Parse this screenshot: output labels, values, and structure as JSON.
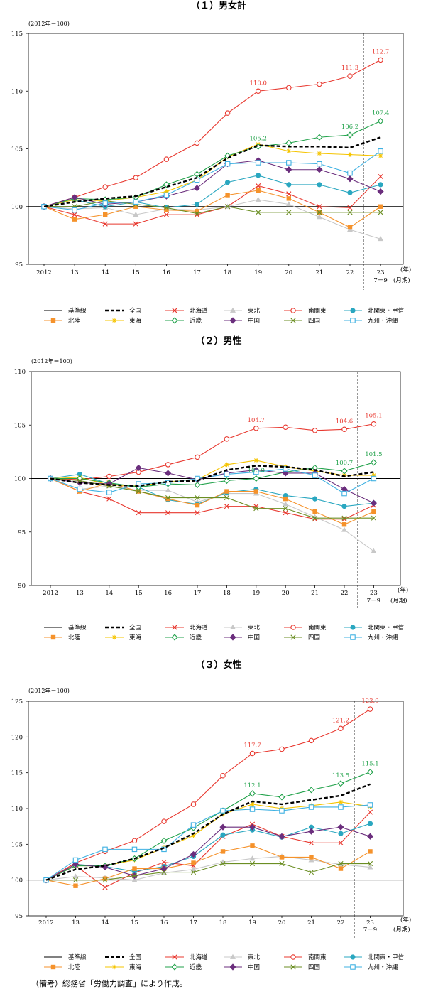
{
  "caption": "（備考）総務省「労働力調査」により作成。",
  "colors": {
    "baseline": "#000000",
    "national": "#000000",
    "hokkaido": "#e8382f",
    "tohoku": "#c8c8c8",
    "minami_kanto": "#e8382f",
    "kita_kanto_koshin": "#2aa7c0",
    "hokuriku": "#f5922b",
    "tokai": "#f5c400",
    "kinki": "#22a24b",
    "chugoku": "#6b2e7d",
    "shikoku": "#6b8e23",
    "kyushu_okinawa": "#3fb1e2"
  },
  "chart_data": [
    {
      "type": "line",
      "title": "（１）男女計",
      "unit_note": "(2012年＝100)",
      "xlabel": "(年)",
      "xlabel_sub": "(月期)",
      "categories": [
        "2012",
        "13",
        "14",
        "15",
        "16",
        "17",
        "18",
        "19",
        "20",
        "21",
        "22",
        "23"
      ],
      "last_category_sub": "7－9",
      "ylim": [
        95,
        115
      ],
      "yticks": [
        95,
        100,
        105,
        110,
        115
      ],
      "baseline": 100,
      "series": [
        {
          "key": "national",
          "name": "全国",
          "marker": "none",
          "dash": true,
          "values": [
            100,
            100.4,
            100.7,
            100.9,
            101.7,
            102.5,
            104.2,
            105.3,
            105.2,
            105.2,
            105.1,
            106.0
          ]
        },
        {
          "key": "hokkaido",
          "name": "北海道",
          "marker": "x",
          "values": [
            100,
            99.3,
            98.5,
            98.5,
            99.3,
            99.3,
            100.0,
            101.8,
            101.1,
            100.0,
            99.9,
            102.6
          ]
        },
        {
          "key": "tohoku",
          "name": "東北",
          "marker": "triangle",
          "values": [
            100,
            99.8,
            99.9,
            99.3,
            99.8,
            99.7,
            100.0,
            100.6,
            100.2,
            99.1,
            98.0,
            97.2
          ]
        },
        {
          "key": "minami_kanto",
          "name": "南関東",
          "marker": "circle-open",
          "values": [
            100,
            100.8,
            101.7,
            102.5,
            104.1,
            105.5,
            108.1,
            110.0,
            110.3,
            110.6,
            111.3,
            112.7
          ]
        },
        {
          "key": "kita_kanto_koshin",
          "name": "北関東・甲信",
          "marker": "circle-filled",
          "values": [
            100,
            100.6,
            100.0,
            100.4,
            99.9,
            100.2,
            102.1,
            102.7,
            101.9,
            101.9,
            101.2,
            101.9
          ]
        },
        {
          "key": "hokuriku",
          "name": "北陸",
          "marker": "square-filled",
          "values": [
            100,
            98.9,
            99.3,
            100.0,
            99.7,
            99.6,
            101.0,
            101.4,
            100.7,
            99.5,
            98.2,
            100.0
          ]
        },
        {
          "key": "tokai",
          "name": "東海",
          "marker": "star",
          "values": [
            100,
            100.6,
            100.5,
            100.8,
            101.3,
            102.3,
            104.3,
            105.4,
            104.8,
            104.6,
            104.5,
            104.4
          ]
        },
        {
          "key": "kinki",
          "name": "近畿",
          "marker": "diamond-open",
          "values": [
            100,
            100.7,
            100.6,
            100.8,
            101.9,
            102.8,
            104.4,
            105.2,
            105.5,
            106.0,
            106.2,
            107.4
          ]
        },
        {
          "key": "chugoku",
          "name": "中国",
          "marker": "diamond-filled",
          "values": [
            100,
            100.8,
            100.2,
            100.4,
            100.9,
            101.6,
            103.7,
            104.0,
            103.2,
            103.2,
            102.4,
            101.3
          ]
        },
        {
          "key": "shikoku",
          "name": "四国",
          "marker": "x",
          "values": [
            100,
            100.0,
            100.5,
            100.2,
            99.9,
            99.4,
            100.0,
            99.5,
            99.5,
            99.5,
            99.5,
            99.5
          ]
        },
        {
          "key": "kyushu_okinawa",
          "name": "九州・沖縄",
          "marker": "square-open",
          "values": [
            100,
            99.7,
            100.3,
            100.4,
            101.0,
            102.3,
            103.7,
            103.8,
            103.8,
            103.7,
            102.9,
            104.8
          ]
        }
      ],
      "annotations": [
        {
          "series": "minami_kanto",
          "index": 7,
          "text": "110.0"
        },
        {
          "series": "minami_kanto",
          "index": 10,
          "text": "111.3"
        },
        {
          "series": "minami_kanto",
          "index": 11,
          "text": "112.7"
        },
        {
          "series": "kinki",
          "index": 7,
          "text": "105.2"
        },
        {
          "series": "kinki",
          "index": 10,
          "text": "106.2"
        },
        {
          "series": "kinki",
          "index": 11,
          "text": "107.4"
        }
      ]
    },
    {
      "type": "line",
      "title": "（２）男性",
      "unit_note": "(2012年＝100)",
      "xlabel": "(年)",
      "xlabel_sub": "(月期)",
      "categories": [
        "2012",
        "13",
        "14",
        "15",
        "16",
        "17",
        "18",
        "19",
        "20",
        "21",
        "22",
        "23"
      ],
      "last_category_sub": "7－9",
      "ylim": [
        90,
        110
      ],
      "yticks": [
        90,
        95,
        100,
        105,
        110
      ],
      "baseline": 100,
      "series": [
        {
          "key": "national",
          "name": "全国",
          "marker": "none",
          "dash": true,
          "values": [
            100,
            99.6,
            99.4,
            99.3,
            99.7,
            99.8,
            100.8,
            101.2,
            101.1,
            100.8,
            100.2,
            100.6
          ]
        },
        {
          "key": "hokkaido",
          "name": "北海道",
          "marker": "x",
          "values": [
            100,
            98.8,
            98.1,
            96.8,
            96.8,
            96.8,
            97.4,
            97.4,
            96.8,
            96.2,
            96.2,
            97.5
          ]
        },
        {
          "key": "tohoku",
          "name": "東北",
          "marker": "triangle",
          "values": [
            100,
            99.0,
            99.3,
            98.9,
            98.9,
            97.8,
            98.6,
            98.6,
            97.6,
            96.4,
            95.2,
            93.2
          ]
        },
        {
          "key": "minami_kanto",
          "name": "南関東",
          "marker": "circle-open",
          "values": [
            100,
            99.9,
            100.2,
            100.6,
            101.3,
            102.0,
            103.7,
            104.7,
            104.8,
            104.5,
            104.6,
            105.1
          ]
        },
        {
          "key": "kita_kanto_koshin",
          "name": "北関東・甲信",
          "marker": "circle-filled",
          "values": [
            100,
            100.4,
            99.5,
            99.2,
            98.0,
            97.6,
            98.7,
            99.0,
            98.4,
            98.1,
            97.4,
            97.7
          ]
        },
        {
          "key": "hokuriku",
          "name": "北陸",
          "marker": "square-filled",
          "values": [
            100,
            98.8,
            99.6,
            98.8,
            98.1,
            97.5,
            98.8,
            98.8,
            98.1,
            96.9,
            95.7,
            96.9
          ]
        },
        {
          "key": "tokai",
          "name": "東海",
          "marker": "star",
          "values": [
            100,
            100.1,
            99.4,
            99.3,
            99.7,
            99.9,
            101.3,
            101.7,
            101.1,
            100.7,
            100.3,
            100.3
          ]
        },
        {
          "key": "kinki",
          "name": "近畿",
          "marker": "diamond-open",
          "values": [
            100,
            100.0,
            99.6,
            99.2,
            99.5,
            99.4,
            99.8,
            100.0,
            100.6,
            101.0,
            100.7,
            101.5
          ]
        },
        {
          "key": "chugoku",
          "name": "中国",
          "marker": "diamond-filled",
          "values": [
            100,
            99.6,
            99.5,
            101.0,
            100.5,
            99.9,
            100.5,
            100.8,
            100.5,
            100.5,
            99.0,
            97.7
          ]
        },
        {
          "key": "shikoku",
          "name": "四国",
          "marker": "x",
          "values": [
            100,
            99.8,
            99.3,
            98.8,
            98.2,
            98.2,
            98.2,
            97.2,
            97.2,
            96.3,
            96.3,
            96.3
          ]
        },
        {
          "key": "kyushu_okinawa",
          "name": "九州・沖縄",
          "marker": "square-open",
          "values": [
            100,
            99.0,
            98.7,
            99.5,
            99.6,
            100.0,
            100.4,
            100.6,
            100.9,
            100.3,
            98.6,
            100.0
          ]
        }
      ],
      "annotations": [
        {
          "series": "minami_kanto",
          "index": 7,
          "text": "104.7"
        },
        {
          "series": "minami_kanto",
          "index": 10,
          "text": "104.6"
        },
        {
          "series": "minami_kanto",
          "index": 11,
          "text": "105.1"
        },
        {
          "series": "kinki",
          "index": 7,
          "text": "100.0"
        },
        {
          "series": "kinki",
          "index": 10,
          "text": "100.7"
        },
        {
          "series": "kinki",
          "index": 11,
          "text": "101.5"
        }
      ]
    },
    {
      "type": "line",
      "title": "（３）女性",
      "unit_note": "(2012年＝100)",
      "xlabel": "(年)",
      "xlabel_sub": "(月期)",
      "categories": [
        "2012",
        "13",
        "14",
        "15",
        "16",
        "17",
        "18",
        "19",
        "20",
        "21",
        "22",
        "23"
      ],
      "last_category_sub": "7－9",
      "ylim": [
        95,
        125
      ],
      "yticks": [
        95,
        100,
        105,
        110,
        115,
        120,
        125
      ],
      "baseline": 100,
      "series": [
        {
          "key": "national",
          "name": "全国",
          "marker": "none",
          "dash": true,
          "values": [
            100,
            101.5,
            102.0,
            103.0,
            104.5,
            106.5,
            109.2,
            111.0,
            110.6,
            111.2,
            111.8,
            113.4
          ]
        },
        {
          "key": "hokkaido",
          "name": "北海道",
          "marker": "x",
          "values": [
            100,
            102.0,
            99.0,
            101.0,
            102.5,
            102.0,
            106.1,
            107.8,
            106.1,
            105.2,
            105.2,
            109.5
          ]
        },
        {
          "key": "tohoku",
          "name": "東北",
          "marker": "triangle",
          "values": [
            100,
            100.5,
            100.3,
            100.0,
            101.0,
            101.5,
            102.5,
            103.0,
            103.3,
            102.8,
            102.2,
            101.8
          ]
        },
        {
          "key": "minami_kanto",
          "name": "南関東",
          "marker": "circle-open",
          "values": [
            100,
            102.4,
            104.0,
            105.5,
            108.2,
            110.6,
            114.6,
            117.7,
            118.3,
            119.5,
            121.2,
            123.9
          ]
        },
        {
          "key": "kita_kanto_koshin",
          "name": "北関東・甲信",
          "marker": "circle-filled",
          "values": [
            100,
            102.2,
            101.9,
            101.2,
            101.9,
            103.3,
            106.3,
            107.0,
            106.0,
            107.4,
            106.5,
            107.9
          ]
        },
        {
          "key": "hokuriku",
          "name": "北陸",
          "marker": "square-filled",
          "values": [
            100,
            99.2,
            100.2,
            101.6,
            101.6,
            102.4,
            104.0,
            104.8,
            103.2,
            103.2,
            101.6,
            104.0
          ]
        },
        {
          "key": "tokai",
          "name": "東海",
          "marker": "star",
          "values": [
            100,
            102.0,
            102.0,
            102.8,
            104.5,
            106.2,
            109.2,
            110.6,
            110.0,
            110.4,
            110.9,
            110.3
          ]
        },
        {
          "key": "kinki",
          "name": "近畿",
          "marker": "diamond-open",
          "values": [
            100,
            102.0,
            102.0,
            103.0,
            105.5,
            107.3,
            109.7,
            112.1,
            111.6,
            112.6,
            113.5,
            115.1
          ]
        },
        {
          "key": "chugoku",
          "name": "中国",
          "marker": "diamond-filled",
          "values": [
            100,
            102.2,
            101.8,
            100.6,
            101.6,
            103.6,
            107.4,
            107.4,
            106.1,
            106.8,
            107.4,
            106.1
          ]
        },
        {
          "key": "shikoku",
          "name": "四国",
          "marker": "x",
          "values": [
            100,
            100.0,
            100.0,
            100.6,
            101.1,
            101.1,
            102.3,
            102.3,
            102.3,
            101.1,
            102.3,
            102.3
          ]
        },
        {
          "key": "kyushu_okinawa",
          "name": "九州・沖縄",
          "marker": "square-open",
          "values": [
            100,
            102.8,
            104.3,
            104.3,
            104.3,
            107.7,
            109.7,
            109.9,
            109.7,
            110.2,
            110.2,
            110.5
          ]
        }
      ],
      "annotations": [
        {
          "series": "minami_kanto",
          "index": 7,
          "text": "117.7"
        },
        {
          "series": "minami_kanto",
          "index": 10,
          "text": "121.2"
        },
        {
          "series": "minami_kanto",
          "index": 11,
          "text": "123.9"
        },
        {
          "series": "kinki",
          "index": 7,
          "text": "112.1"
        },
        {
          "series": "kinki",
          "index": 10,
          "text": "113.5"
        },
        {
          "series": "kinki",
          "index": 11,
          "text": "115.1"
        }
      ]
    }
  ],
  "legend": {
    "entries": [
      {
        "key": "baseline",
        "name": "基準線",
        "marker": "none"
      },
      {
        "key": "national",
        "name": "全国",
        "marker": "none",
        "dash": true
      },
      {
        "key": "hokkaido",
        "name": "北海道",
        "marker": "x"
      },
      {
        "key": "tohoku",
        "name": "東北",
        "marker": "triangle"
      },
      {
        "key": "minami_kanto",
        "name": "南関東",
        "marker": "circle-open"
      },
      {
        "key": "kita_kanto_koshin",
        "name": "北関東・甲信",
        "marker": "circle-filled"
      },
      {
        "key": "hokuriku",
        "name": "北陸",
        "marker": "square-filled"
      },
      {
        "key": "tokai",
        "name": "東海",
        "marker": "star"
      },
      {
        "key": "kinki",
        "name": "近畿",
        "marker": "diamond-open"
      },
      {
        "key": "chugoku",
        "name": "中国",
        "marker": "diamond-filled"
      },
      {
        "key": "shikoku",
        "name": "四国",
        "marker": "x"
      },
      {
        "key": "kyushu_okinawa",
        "name": "九州・沖縄",
        "marker": "square-open"
      }
    ]
  }
}
